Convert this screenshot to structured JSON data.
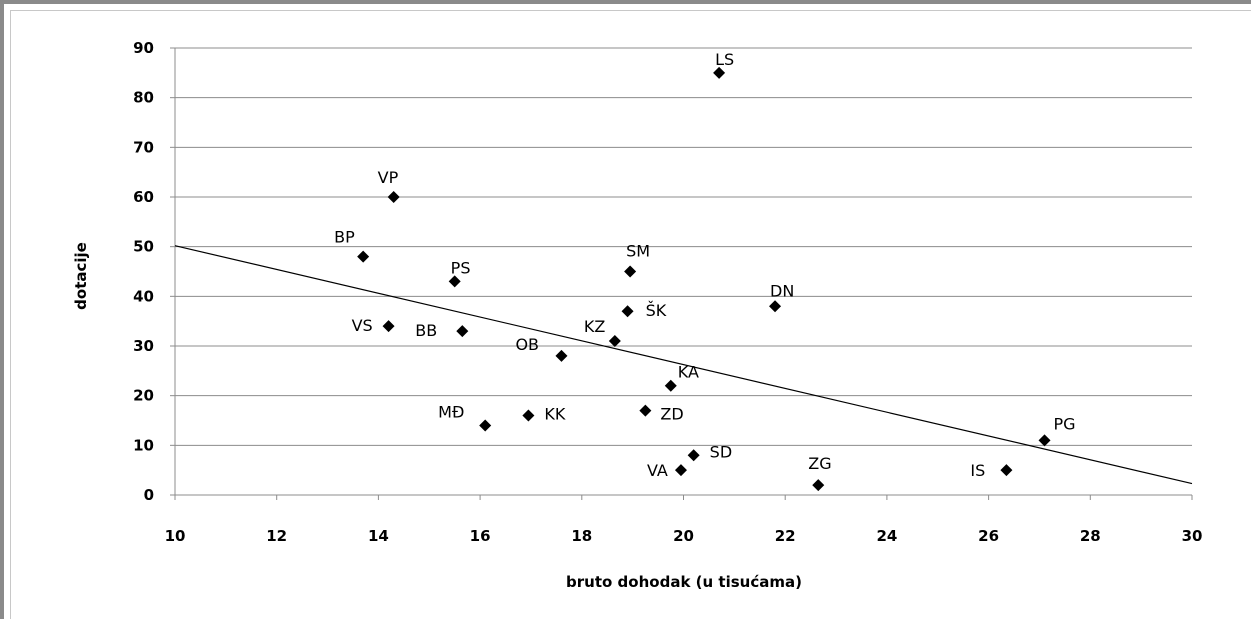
{
  "chart_data": {
    "type": "scatter",
    "title": "",
    "xlabel": "bruto dohodak (u tisućama)",
    "ylabel": "dotacije",
    "xlim": [
      10,
      30
    ],
    "ylim": [
      0,
      90
    ],
    "x_ticks": [
      "10",
      "12",
      "14",
      "16",
      "18",
      "20",
      "22",
      "24",
      "26",
      "28",
      "30"
    ],
    "y_ticks": [
      "0",
      "10",
      "20",
      "30",
      "40",
      "50",
      "60",
      "70",
      "80",
      "90"
    ],
    "grid": "horizontal",
    "legend": "none",
    "marker": "diamond",
    "marker_color": "#000000",
    "points": [
      {
        "label": "LS",
        "x": 20.7,
        "y": 85
      },
      {
        "label": "VP",
        "x": 14.3,
        "y": 60
      },
      {
        "label": "BP",
        "x": 13.7,
        "y": 48
      },
      {
        "label": "PS",
        "x": 15.5,
        "y": 43
      },
      {
        "label": "SM",
        "x": 18.95,
        "y": 45
      },
      {
        "label": "DN",
        "x": 21.8,
        "y": 38
      },
      {
        "label": "ŠK",
        "x": 18.9,
        "y": 37
      },
      {
        "label": "VS",
        "x": 14.2,
        "y": 34
      },
      {
        "label": "BB",
        "x": 15.65,
        "y": 33
      },
      {
        "label": "KZ",
        "x": 18.65,
        "y": 31
      },
      {
        "label": "OB",
        "x": 17.6,
        "y": 28
      },
      {
        "label": "KA",
        "x": 19.75,
        "y": 22
      },
      {
        "label": "ZD",
        "x": 19.25,
        "y": 17
      },
      {
        "label": "KK",
        "x": 16.95,
        "y": 16
      },
      {
        "label": "MĐ",
        "x": 16.1,
        "y": 14
      },
      {
        "label": "PG",
        "x": 27.1,
        "y": 11
      },
      {
        "label": "SD",
        "x": 20.2,
        "y": 8
      },
      {
        "label": "VA",
        "x": 19.95,
        "y": 5
      },
      {
        "label": "IS",
        "x": 26.35,
        "y": 5
      },
      {
        "label": "ZG",
        "x": 22.65,
        "y": 2
      }
    ],
    "trendline": {
      "type": "linear",
      "x": [
        10,
        30
      ],
      "y": [
        50.2,
        2.3
      ]
    }
  }
}
